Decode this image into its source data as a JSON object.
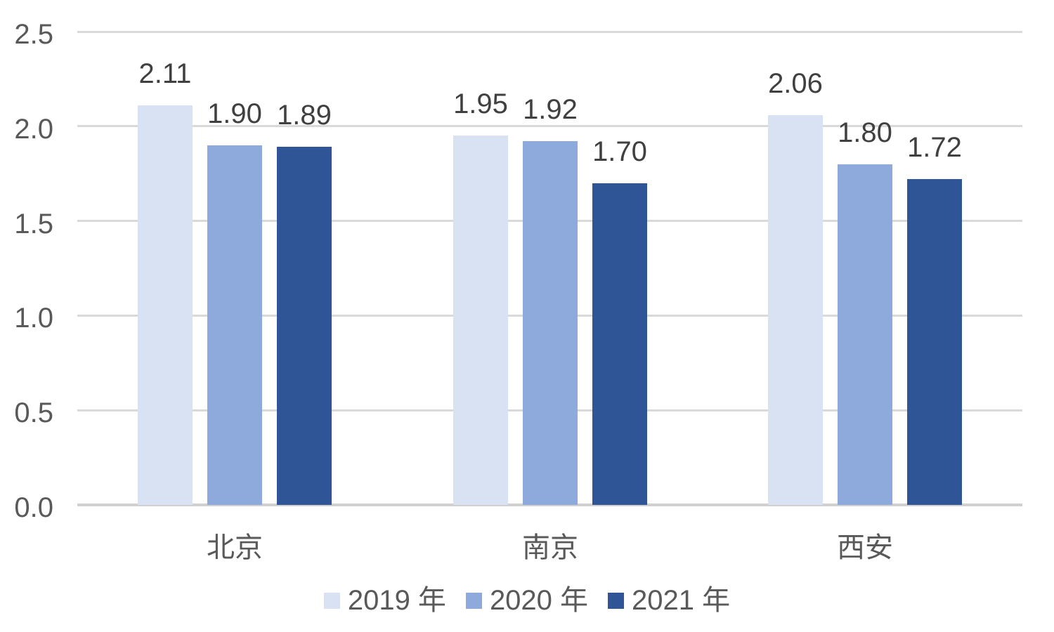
{
  "chart_data": {
    "type": "bar",
    "title": "",
    "xlabel": "",
    "ylabel": "",
    "categories": [
      "北京",
      "南京",
      "西安"
    ],
    "series": [
      {
        "name": "2019 年",
        "color": "#D9E2F3",
        "values": [
          2.11,
          1.95,
          2.06
        ]
      },
      {
        "name": "2020 年",
        "color": "#8EA9DB",
        "values": [
          1.9,
          1.92,
          1.8
        ]
      },
      {
        "name": "2021 年",
        "color": "#2F5597",
        "values": [
          1.89,
          1.7,
          1.72
        ]
      }
    ],
    "data_labels": [
      [
        "2.11",
        "1.95",
        "2.06"
      ],
      [
        "1.90",
        "1.92",
        "1.80"
      ],
      [
        "1.89",
        "1.70",
        "1.72"
      ]
    ],
    "ylim": [
      0,
      2.5
    ],
    "yticks": [
      "0.0",
      "0.5",
      "1.0",
      "1.5",
      "2.0",
      "2.5"
    ],
    "grid": true,
    "legend_position": "bottom"
  },
  "colors": {
    "gridline": "#D9D9D9",
    "baseline": "#D0D0D0",
    "axis_label": "#595959",
    "data_label": "#404040",
    "legend_label": "#595959"
  }
}
